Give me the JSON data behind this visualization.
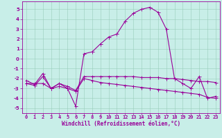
{
  "xlabel": "Windchill (Refroidissement éolien,°C)",
  "background_color": "#c8eee8",
  "line_color": "#990099",
  "grid_color": "#99ccbb",
  "xlim_min": -0.5,
  "xlim_max": 23.5,
  "ylim_min": -5.5,
  "ylim_max": 5.8,
  "yticks": [
    -5,
    -4,
    -3,
    -2,
    -1,
    0,
    1,
    2,
    3,
    4,
    5
  ],
  "xticks": [
    0,
    1,
    2,
    3,
    4,
    5,
    6,
    7,
    8,
    9,
    10,
    11,
    12,
    13,
    14,
    15,
    16,
    17,
    18,
    19,
    20,
    21,
    22,
    23
  ],
  "line1_y": [
    -2.5,
    -2.5,
    -2.5,
    -3.0,
    -2.5,
    -3.0,
    -4.8,
    0.5,
    0.7,
    1.5,
    2.2,
    2.5,
    3.8,
    4.6,
    5.0,
    5.2,
    4.7,
    3.0,
    -2.0,
    -2.5,
    -3.0,
    -1.8,
    -4.0,
    -3.8
  ],
  "line2_y": [
    -2.2,
    -2.6,
    -1.5,
    -3.0,
    -2.5,
    -2.8,
    -3.2,
    -1.8,
    -1.8,
    -1.8,
    -1.8,
    -1.8,
    -1.8,
    -1.8,
    -1.9,
    -1.9,
    -1.9,
    -2.0,
    -2.0,
    -2.1,
    -2.2,
    -2.3,
    -2.3,
    -2.4
  ],
  "line3_y": [
    -2.5,
    -2.7,
    -1.8,
    -3.0,
    -2.8,
    -3.0,
    -3.3,
    -2.0,
    -2.2,
    -2.4,
    -2.5,
    -2.6,
    -2.7,
    -2.8,
    -2.9,
    -3.0,
    -3.1,
    -3.2,
    -3.3,
    -3.4,
    -3.5,
    -3.6,
    -3.9,
    -4.0
  ],
  "xlabel_fontsize": 5.5,
  "tick_fontsize": 5.0,
  "marker_size": 2.0,
  "line_width": 0.8
}
